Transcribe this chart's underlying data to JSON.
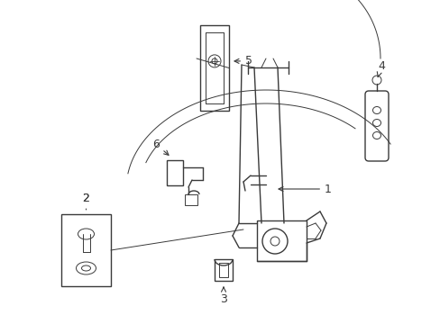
{
  "bg_color": "#ffffff",
  "lc": "#3a3a3a",
  "lw": 1.0,
  "tlw": 0.7,
  "fs": 9,
  "fig_w": 4.89,
  "fig_h": 3.6
}
